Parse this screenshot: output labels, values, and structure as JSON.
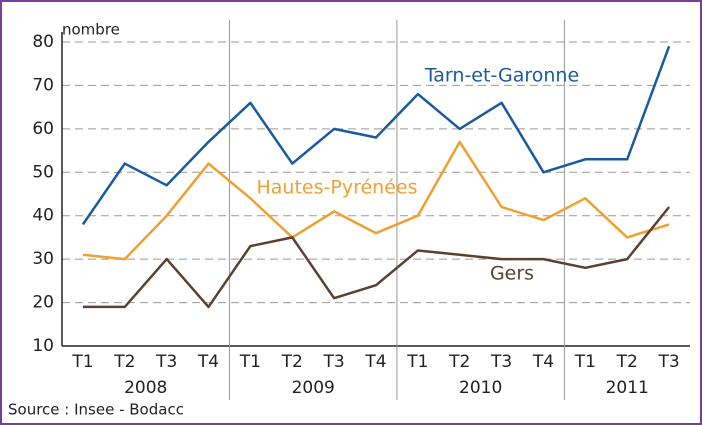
{
  "chart_data": {
    "type": "line",
    "y_label": "nombre",
    "categories": [
      "T1",
      "T2",
      "T3",
      "T4",
      "T1",
      "T2",
      "T3",
      "T4",
      "T1",
      "T2",
      "T3",
      "T4",
      "T1",
      "T2",
      "T3"
    ],
    "years": [
      "2008",
      "2009",
      "2010",
      "2011"
    ],
    "series": [
      {
        "name": "Tarn-et-Garonne",
        "color": "#1a5a9e",
        "values": [
          38,
          52,
          47,
          57,
          66,
          52,
          60,
          58,
          68,
          60,
          66,
          50,
          53,
          53,
          79
        ]
      },
      {
        "name": "Hautes-Pyrénées",
        "color": "#f0a030",
        "values": [
          31,
          30,
          40,
          52,
          44,
          35,
          41,
          36,
          40,
          57,
          42,
          39,
          44,
          35,
          38
        ]
      },
      {
        "name": "Gers",
        "color": "#5c4030",
        "values": [
          19,
          19,
          30,
          19,
          33,
          35,
          21,
          24,
          32,
          31,
          30,
          30,
          28,
          30,
          42
        ]
      }
    ],
    "ylim": [
      10,
      80
    ],
    "yticks": [
      10,
      20,
      30,
      40,
      50,
      60,
      70,
      80
    ],
    "grid": true,
    "source": "Source : Insee - Bodacc"
  }
}
